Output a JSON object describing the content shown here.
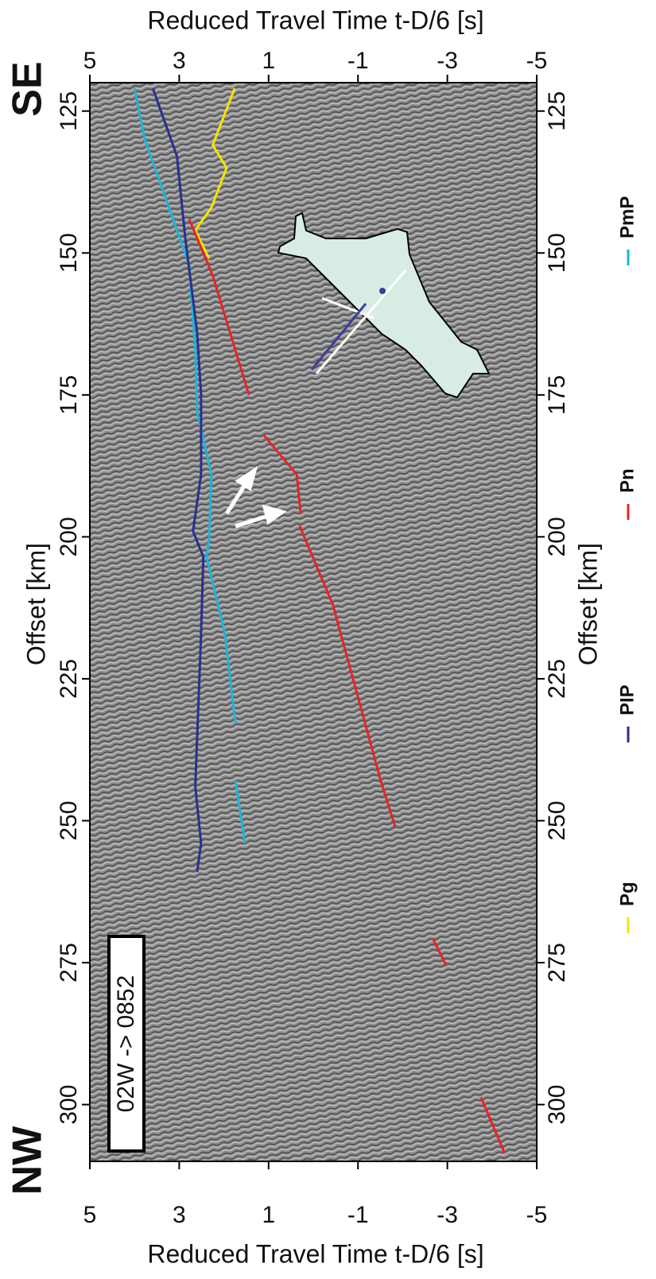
{
  "chart_data": {
    "type": "line",
    "title": "Reduced Travel Time t-D/6 [s]",
    "xlabel": "Offset [km]",
    "xlim": [
      120,
      310
    ],
    "xticks": [
      125,
      150,
      175,
      200,
      225,
      250,
      275,
      300
    ],
    "ylim": [
      5,
      -5
    ],
    "yticks": [
      5,
      3,
      1,
      -1,
      -3,
      -5
    ],
    "annotations": [
      "SE",
      "NW",
      "02W -> 0852"
    ],
    "series": [
      {
        "name": "Pg",
        "color": "#f2e600",
        "x": [
          121,
          131,
          135,
          142,
          146,
          151
        ],
        "values": [
          1.76,
          2.25,
          1.94,
          2.28,
          2.64,
          2.33
        ]
      },
      {
        "name": "PmP",
        "color": "#1fb4d8",
        "x": [
          121,
          130,
          140,
          152,
          167,
          178,
          189,
          200,
          203.5,
          217,
          233,
          238,
          243,
          254
        ],
        "values": [
          4.0,
          3.77,
          3.32,
          2.78,
          2.64,
          2.6,
          2.28,
          2.33,
          2.39,
          1.98,
          1.74,
          null,
          1.74,
          1.53
        ]
      },
      {
        "name": "PIP",
        "color": "#2a2f8f",
        "x": [
          121,
          133,
          147,
          164,
          175,
          189,
          199,
          203.5,
          217,
          244,
          254,
          259
        ],
        "values": [
          3.59,
          3.05,
          2.87,
          2.6,
          2.51,
          2.51,
          2.69,
          2.46,
          2.51,
          2.64,
          2.51,
          2.6
        ]
      },
      {
        "name": "Pn",
        "color": "#e0262b",
        "x": [
          144,
          154,
          175,
          178,
          182,
          189,
          196,
          197,
          198,
          212,
          243,
          251,
          260,
          270.7,
          275.6,
          285,
          298.7,
          308.5
        ],
        "values": [
          2.78,
          2.25,
          1.44,
          null,
          1.12,
          0.37,
          0.28,
          null,
          0.31,
          -0.44,
          -1.51,
          -1.83,
          null,
          -2.67,
          -2.98,
          null,
          -3.75,
          -4.28
        ]
      }
    ]
  }
}
